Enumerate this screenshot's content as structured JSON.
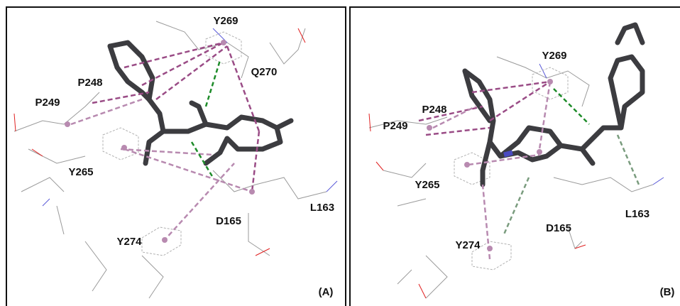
{
  "panel_a": {
    "labels": [
      "Y269",
      "Q270",
      "P248",
      "P249",
      "Y265",
      "L163",
      "D165",
      "Y274"
    ],
    "tag": "(A)"
  },
  "panel_b": {
    "labels": [
      "Y269",
      "P248",
      "P249",
      "Y265",
      "L163",
      "D165",
      "Y274"
    ],
    "tag": "(B)"
  }
}
